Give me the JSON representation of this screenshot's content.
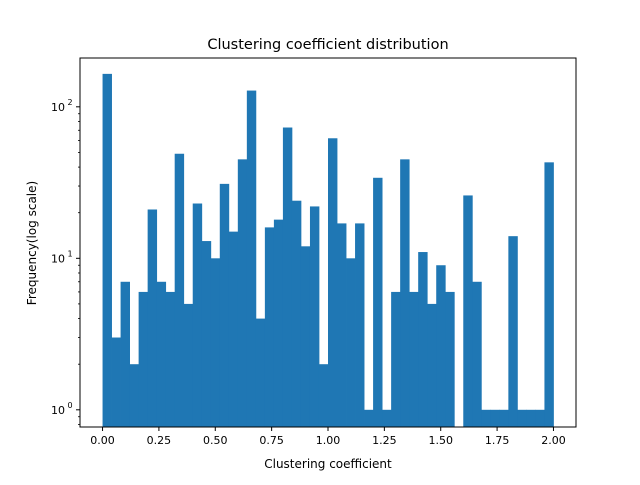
{
  "chart_data": {
    "type": "bar",
    "subtype": "histogram",
    "title": "Clustering coefficient distribution",
    "xlabel": "Clustering coefficient",
    "ylabel": "Frequency(log scale)",
    "yscale": "log",
    "xlim": [
      -0.1,
      2.1
    ],
    "ylim": [
      0.77,
      210
    ],
    "grid": false,
    "color": "#1f77b4",
    "bin_width": 0.04,
    "bin_start": 0.0,
    "values": [
      165,
      3,
      7,
      2,
      6,
      21,
      7,
      6,
      49,
      5,
      23,
      13,
      10,
      31,
      15,
      45,
      128,
      4,
      16,
      18,
      73,
      24,
      12,
      22,
      2,
      62,
      17,
      10,
      17,
      1,
      34,
      1,
      6,
      45,
      6,
      11,
      5,
      9,
      6,
      0,
      26,
      7,
      1,
      1,
      1,
      14,
      1,
      1,
      1,
      43
    ],
    "xticks": [
      {
        "value": 0.0,
        "label": "0.00"
      },
      {
        "value": 0.25,
        "label": "0.25"
      },
      {
        "value": 0.5,
        "label": "0.50"
      },
      {
        "value": 0.75,
        "label": "0.75"
      },
      {
        "value": 1.0,
        "label": "1.00"
      },
      {
        "value": 1.25,
        "label": "1.25"
      },
      {
        "value": 1.5,
        "label": "1.50"
      },
      {
        "value": 1.75,
        "label": "1.75"
      },
      {
        "value": 2.0,
        "label": "2.00"
      }
    ],
    "yticks": [
      {
        "value": 1,
        "base": "10",
        "exp": "0"
      },
      {
        "value": 10,
        "base": "10",
        "exp": "1"
      },
      {
        "value": 100,
        "base": "10",
        "exp": "2"
      }
    ]
  }
}
